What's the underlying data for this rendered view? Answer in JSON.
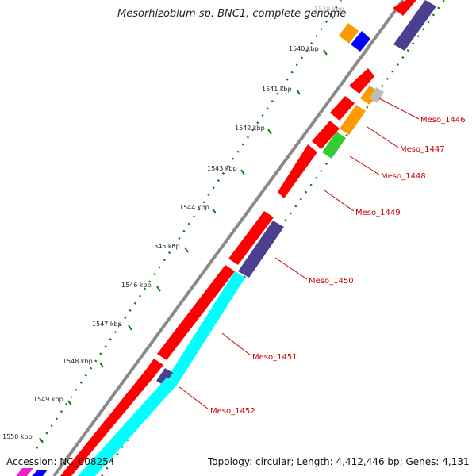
{
  "title": "Mesorhizobium sp. BNC1, complete genome",
  "footer": {
    "accession": "Accession: NC_008254",
    "summary": "Topology: circular; Length: 4,412,446 bp; Genes: 4,131"
  },
  "ruler": [
    {
      "label": "1539 kbp",
      "faded": true
    },
    {
      "label": "1540 kbp"
    },
    {
      "label": "1541 kbp"
    },
    {
      "label": "1542 kbp"
    },
    {
      "label": "1543 kbp"
    },
    {
      "label": "1544 kbp"
    },
    {
      "label": "1545 kbp"
    },
    {
      "label": "1546 kbp"
    },
    {
      "label": "1547 kbp"
    },
    {
      "label": "1548 kbp"
    },
    {
      "label": "1549 kbp"
    },
    {
      "label": "1550 kbp"
    }
  ],
  "genes": [
    {
      "label": "Meso_1446"
    },
    {
      "label": "Meso_1447"
    },
    {
      "label": "Meso_1448"
    },
    {
      "label": "Meso_1449"
    },
    {
      "label": "Meso_1450"
    },
    {
      "label": "Meso_1451"
    },
    {
      "label": "Meso_1452"
    }
  ],
  "colors": {
    "cds": "#ff0000",
    "orange": "#ff9900",
    "blue": "#0000ff",
    "purple": "#4b3f8f",
    "cyan": "#00ffff",
    "green": "#33cc33",
    "gray": "#bdbdbd",
    "backbone": "#8a8a8a",
    "gc_dots": "#0a7a0a",
    "label": "#cc0000"
  }
}
